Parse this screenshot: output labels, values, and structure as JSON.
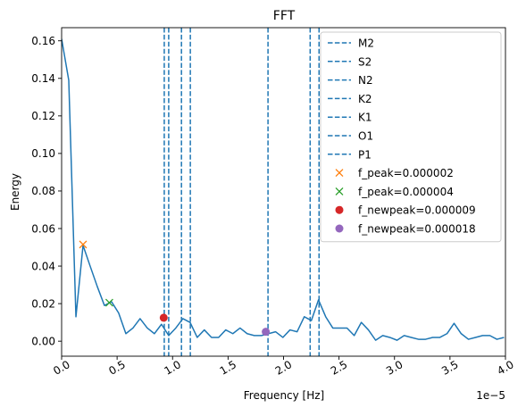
{
  "chart_data": {
    "type": "line",
    "title": "FFT",
    "xlabel": "Frequency [Hz]",
    "ylabel": "Energy",
    "x_offset_label": "1e−5",
    "xlim": [
      0.0,
      4e-05
    ],
    "ylim": [
      -0.008,
      0.167
    ],
    "x_ticks": [
      0.0,
      5e-06,
      1e-05,
      1.5e-05,
      2e-05,
      2.5e-05,
      3e-05,
      3.5e-05,
      4e-05
    ],
    "x_tick_labels": [
      "0.0",
      "0.5",
      "1.0",
      "1.5",
      "2.0",
      "2.5",
      "3.0",
      "3.5",
      "4.0"
    ],
    "y_ticks": [
      0.0,
      0.02,
      0.04,
      0.06,
      0.08,
      0.1,
      0.12,
      0.14,
      0.16
    ],
    "y_tick_labels": [
      "0.00",
      "0.02",
      "0.04",
      "0.06",
      "0.08",
      "0.10",
      "0.12",
      "0.14",
      "0.16"
    ],
    "series": [
      {
        "color": "#1f77b4",
        "x": [
          0.0,
          6.43e-07,
          1.29e-06,
          1.93e-06,
          2.57e-06,
          3.22e-06,
          3.86e-06,
          4.5e-06,
          5.14e-06,
          5.79e-06,
          6.43e-06,
          7.07e-06,
          7.72e-06,
          8.36e-06,
          9e-06,
          9.65e-06,
          1.029e-05,
          1.093e-05,
          1.158e-05,
          1.222e-05,
          1.286e-05,
          1.351e-05,
          1.415e-05,
          1.479e-05,
          1.543e-05,
          1.608e-05,
          1.672e-05,
          1.736e-05,
          1.801e-05,
          1.865e-05,
          1.929e-05,
          1.994e-05,
          2.058e-05,
          2.122e-05,
          2.187e-05,
          2.251e-05,
          2.315e-05,
          2.38e-05,
          2.444e-05,
          2.508e-05,
          2.572e-05,
          2.637e-05,
          2.701e-05,
          2.765e-05,
          2.83e-05,
          2.894e-05,
          2.958e-05,
          3.023e-05,
          3.087e-05,
          3.151e-05,
          3.216e-05,
          3.28e-05,
          3.344e-05,
          3.409e-05,
          3.473e-05,
          3.537e-05,
          3.601e-05,
          3.666e-05,
          3.73e-05,
          3.794e-05,
          3.859e-05,
          3.923e-05,
          3.987e-05
        ],
        "y": [
          0.161,
          0.139,
          0.013,
          0.051,
          0.04,
          0.029,
          0.019,
          0.021,
          0.015,
          0.004,
          0.007,
          0.012,
          0.007,
          0.004,
          0.009,
          0.003,
          0.007,
          0.012,
          0.01,
          0.002,
          0.006,
          0.002,
          0.002,
          0.006,
          0.004,
          0.007,
          0.004,
          0.003,
          0.003,
          0.004,
          0.005,
          0.002,
          0.006,
          0.005,
          0.013,
          0.011,
          0.022,
          0.013,
          0.007,
          0.007,
          0.007,
          0.003,
          0.01,
          0.006,
          0.0005,
          0.003,
          0.002,
          0.0005,
          0.003,
          0.002,
          0.001,
          0.001,
          0.002,
          0.002,
          0.004,
          0.0095,
          0.004,
          0.001,
          0.002,
          0.003,
          0.003,
          0.001,
          0.002
        ]
      }
    ],
    "vlines": [
      {
        "name": "M2",
        "x": 9.25e-06
      },
      {
        "name": "S2",
        "x": 9.65e-06
      },
      {
        "name": "N2",
        "x": 1.08e-05
      },
      {
        "name": "K2",
        "x": 1.16e-05
      },
      {
        "name": "K1",
        "x": 1.86e-05
      },
      {
        "name": "O1",
        "x": 2.24e-05
      },
      {
        "name": "P1",
        "x": 2.32e-05
      }
    ],
    "markers": [
      {
        "name": "f_peak=0.000002",
        "x": 1.93e-06,
        "y": 0.0515,
        "symbol": "x",
        "color": "#ff7f0e"
      },
      {
        "name": "f_peak=0.000004",
        "x": 4.3e-06,
        "y": 0.0205,
        "symbol": "x",
        "color": "#2ca02c"
      },
      {
        "name": "f_newpeak=0.000009",
        "x": 9.2e-06,
        "y": 0.0125,
        "symbol": "o",
        "color": "#d62728"
      },
      {
        "name": "f_newpeak=0.000018",
        "x": 1.84e-05,
        "y": 0.005,
        "symbol": "o",
        "color": "#9467bd"
      }
    ],
    "vline_color": "#1f77b4",
    "grid": false,
    "legend_position": "upper right"
  }
}
